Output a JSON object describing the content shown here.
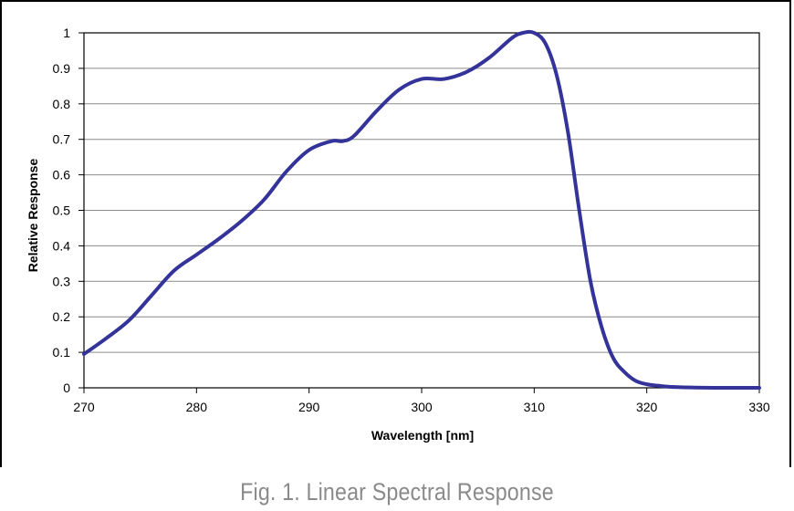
{
  "caption": "Fig. 1. Linear Spectral Response",
  "chart_data": {
    "type": "line",
    "xlabel": "Wavelength [nm]",
    "ylabel": "Relative Response",
    "xlim": [
      270,
      330
    ],
    "ylim": [
      0,
      1
    ],
    "x_ticks": [
      "270",
      "280",
      "290",
      "300",
      "310",
      "320",
      "330"
    ],
    "y_ticks": [
      "0",
      "0.1",
      "0.2",
      "0.3",
      "0.4",
      "0.5",
      "0.6",
      "0.7",
      "0.8",
      "0.9",
      "1"
    ],
    "grid": true,
    "line_color": "#333399",
    "series": [
      {
        "x": [
          270,
          272,
          274,
          276,
          278,
          280,
          282,
          284,
          286,
          288,
          290,
          292,
          293,
          294,
          296,
          298,
          300,
          302,
          304,
          306,
          308,
          309,
          310,
          311,
          312,
          313,
          314,
          315,
          316,
          317,
          318,
          319,
          320,
          321,
          322,
          324,
          326,
          328,
          330
        ],
        "y": [
          0.095,
          0.14,
          0.19,
          0.26,
          0.33,
          0.375,
          0.42,
          0.47,
          0.53,
          0.61,
          0.67,
          0.695,
          0.695,
          0.71,
          0.78,
          0.84,
          0.87,
          0.87,
          0.89,
          0.93,
          0.985,
          1.0,
          1.0,
          0.97,
          0.88,
          0.72,
          0.5,
          0.3,
          0.17,
          0.085,
          0.045,
          0.02,
          0.01,
          0.006,
          0.003,
          0.001,
          0.0,
          0.0,
          0.0
        ]
      }
    ]
  }
}
